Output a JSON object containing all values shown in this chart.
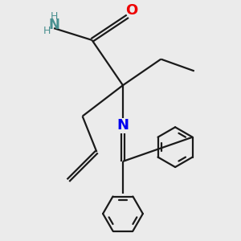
{
  "bg_color": "#ebebeb",
  "bond_color": "#1a1a1a",
  "N_color": "#0000ee",
  "O_color": "#ee0000",
  "NH_color": "#4a9090",
  "line_width": 1.6,
  "figsize": [
    3.0,
    3.0
  ],
  "dpi": 100,
  "xlim": [
    -1.5,
    3.2
  ],
  "ylim": [
    -3.5,
    1.5
  ]
}
